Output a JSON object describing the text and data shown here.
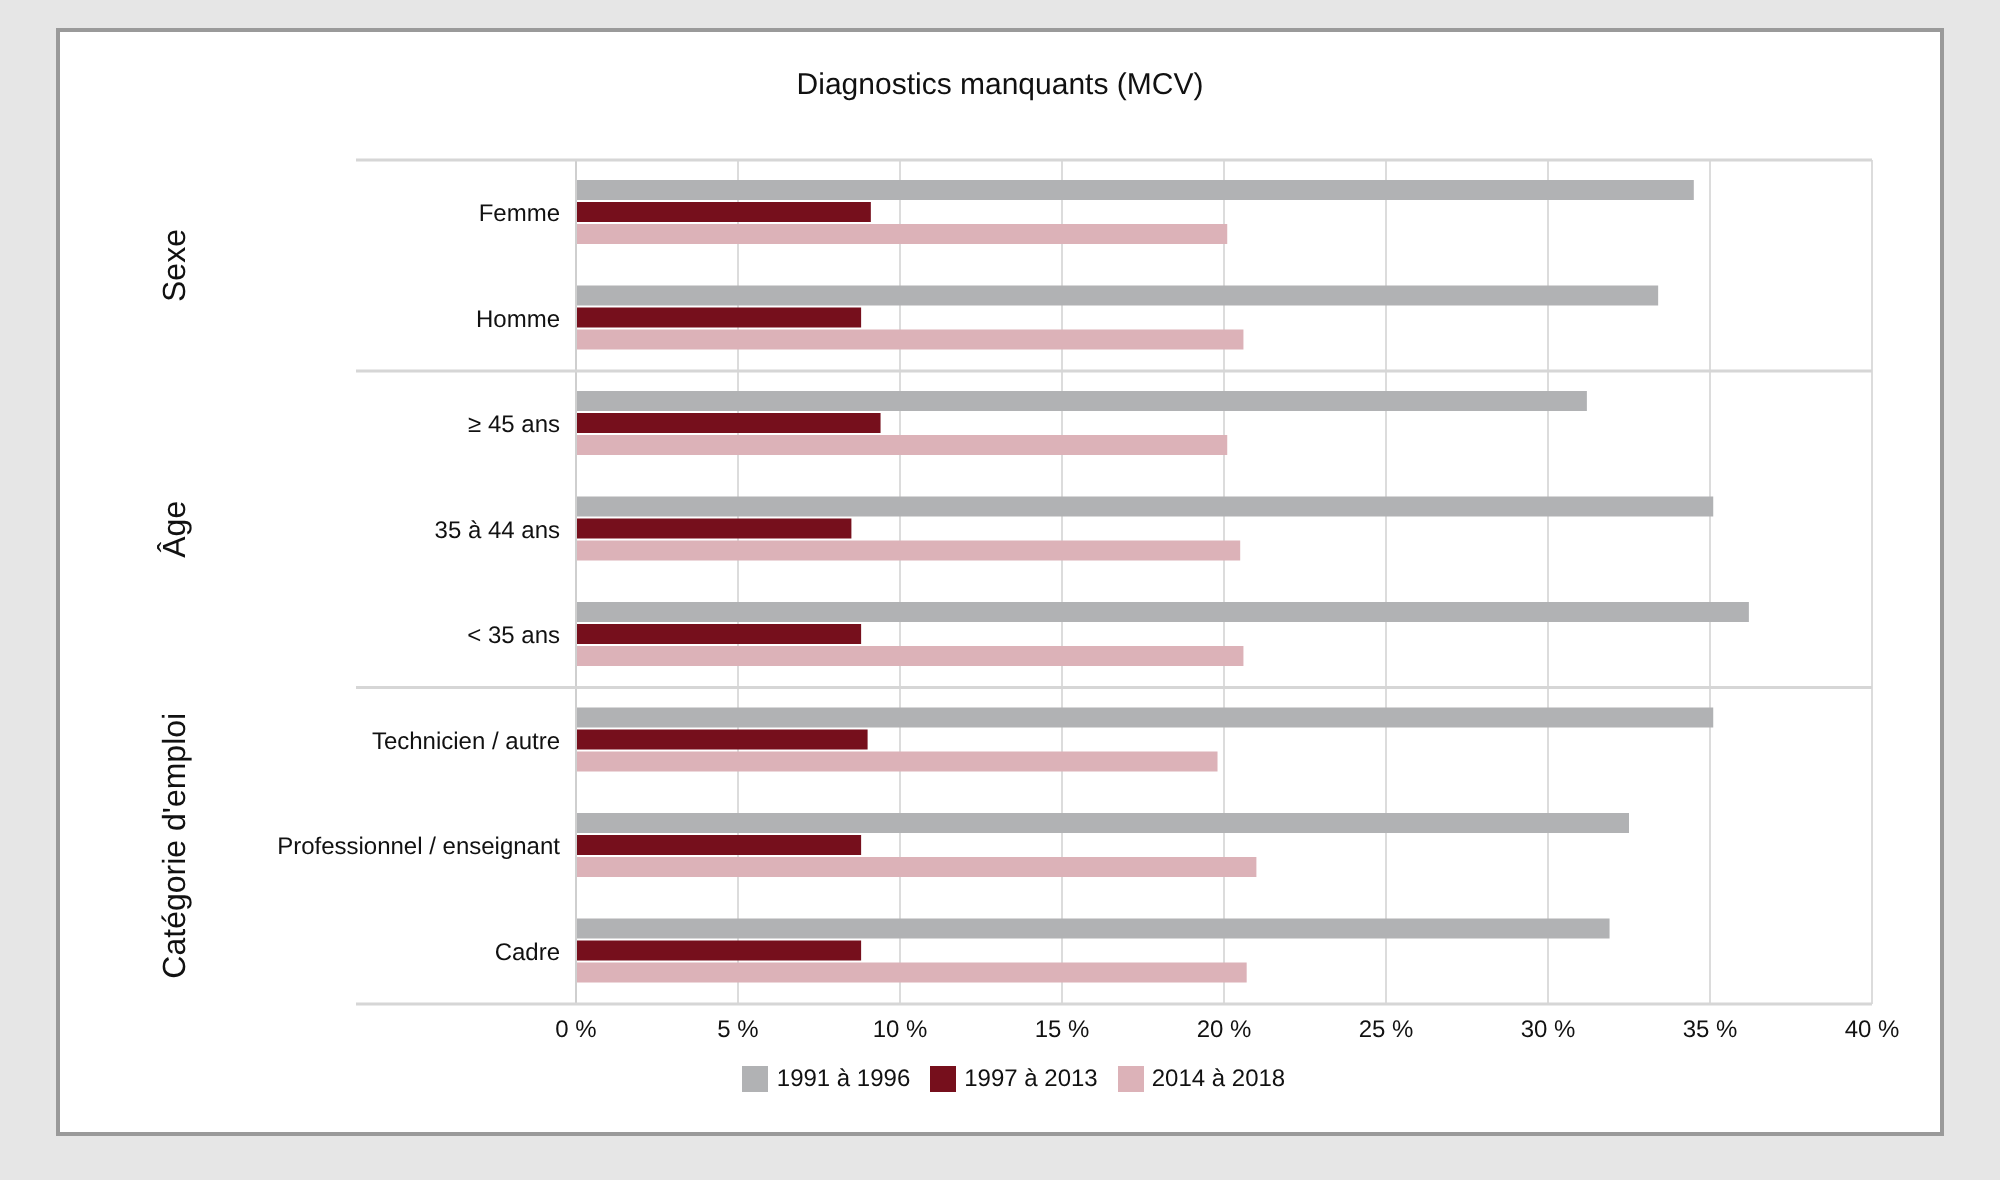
{
  "chart_data": {
    "type": "bar",
    "orientation": "horizontal",
    "title": "Diagnostics manquants (MCV)",
    "categories": [
      "Femme",
      "Homme",
      "≥ 45 ans",
      "35 à 44 ans",
      "< 35 ans",
      "Technicien / autre",
      "Professionnel / enseignant",
      "Cadre"
    ],
    "series": [
      {
        "name": "1991 à 1996",
        "color": "#b1b2b4",
        "values": [
          34.5,
          33.4,
          31.2,
          35.1,
          36.2,
          35.1,
          32.5,
          31.9
        ]
      },
      {
        "name": "1997 à 2013",
        "color": "#760f1c",
        "values": [
          9.1,
          8.8,
          9.4,
          8.5,
          8.8,
          9.0,
          8.8,
          8.8
        ]
      },
      {
        "name": "2014 à 2018",
        "color": "#dcb2b8",
        "values": [
          20.1,
          20.6,
          20.1,
          20.5,
          20.6,
          19.8,
          21.0,
          20.7
        ]
      }
    ],
    "annotations": [
      "Sexe",
      "Âge",
      "Catégorie d'emploi"
    ],
    "xlim": [
      0,
      40
    ],
    "xticks": [
      {
        "value": 0,
        "label": "0 %"
      },
      {
        "value": 5,
        "label": "5 %"
      },
      {
        "value": 10,
        "label": "10 %"
      },
      {
        "value": 15,
        "label": "15 %"
      },
      {
        "value": 20,
        "label": "20 %"
      },
      {
        "value": 25,
        "label": "25 %"
      },
      {
        "value": 30,
        "label": "30 %"
      },
      {
        "value": 35,
        "label": "35 %"
      },
      {
        "value": 40,
        "label": "40 %"
      }
    ],
    "grid": "x",
    "legend": "bottom"
  }
}
